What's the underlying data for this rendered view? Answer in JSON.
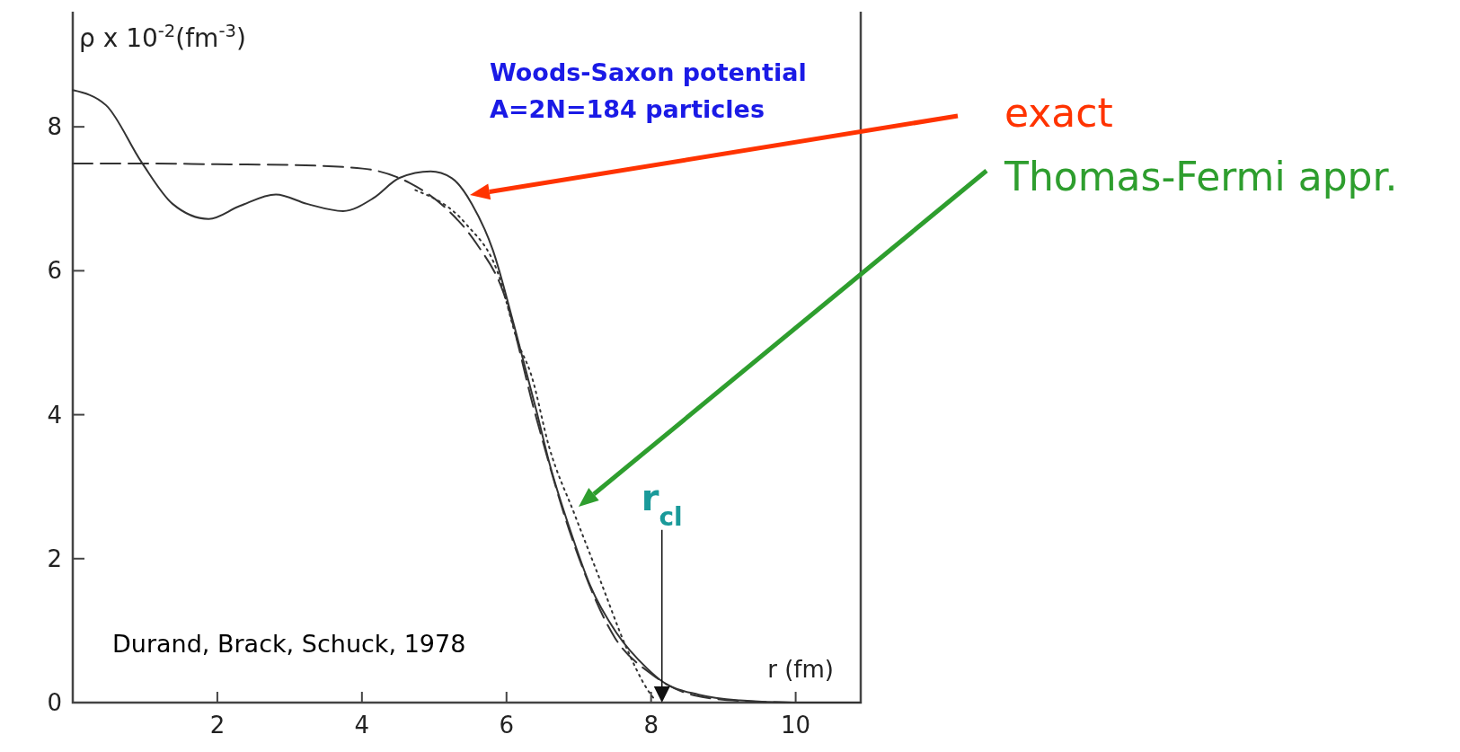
{
  "chart_data": {
    "type": "line",
    "ylabel": "ρ x 10$^{-2}$(fm$^{-3}$)",
    "xlabel": "r (fm)",
    "xlim": [
      0,
      10.9
    ],
    "ylim": [
      0,
      9.6
    ],
    "xticks": [
      2,
      4,
      6,
      8,
      10
    ],
    "yticks": [
      0,
      2,
      4,
      6,
      8
    ],
    "grid": false,
    "marker": "none",
    "series": [
      {
        "color": "#333333",
        "line_style": "solid",
        "x": [
          0,
          0.46,
          0.95,
          1.38,
          1.88,
          2.31,
          2.81,
          3.24,
          3.74,
          4.16,
          4.52,
          4.95,
          5.24,
          5.52,
          5.81,
          6.11,
          6.41,
          6.59,
          6.88,
          7.16,
          7.52,
          7.95,
          8.16,
          8.66,
          9.23,
          9.94,
          10.9
        ],
        "values": [
          8.51,
          8.3,
          7.51,
          6.93,
          6.72,
          6.9,
          7.06,
          6.93,
          6.83,
          7.01,
          7.29,
          7.38,
          7.29,
          6.93,
          6.29,
          5.22,
          4.07,
          3.34,
          2.4,
          1.62,
          0.97,
          0.47,
          0.29,
          0.11,
          0.03,
          0,
          0
        ]
      },
      {
        "color": "#333333",
        "line_style": "dashed",
        "x": [
          0,
          1,
          2,
          3,
          4.01,
          4.66,
          5.16,
          5.59,
          5.95,
          6.4,
          6.9,
          7.5,
          8.0,
          8.6,
          9.3,
          10
        ],
        "values": [
          7.49,
          7.49,
          7.48,
          7.47,
          7.42,
          7.22,
          6.87,
          6.37,
          5.72,
          4.0,
          2.3,
          0.9,
          0.4,
          0.1,
          0.02,
          0
        ]
      },
      {
        "color": "#333333",
        "line_style": "dotted",
        "x": [
          4.74,
          5.44,
          5.87,
          6.16,
          6.34,
          6.59,
          6.94,
          7.3,
          7.66,
          7.95,
          8.05
        ],
        "values": [
          7.12,
          6.65,
          6.0,
          5.0,
          4.56,
          3.55,
          2.62,
          1.69,
          0.76,
          0.18,
          0.04
        ]
      }
    ],
    "ref_lines": [
      {
        "axis": "x",
        "value": 8.15,
        "label": "r$_{cl}$",
        "color": "#111111"
      }
    ],
    "annotations": [
      "Woods-Saxon potential",
      "A=2N=184 particles",
      "exact",
      "Thomas-Fermi appr.",
      "Durand, Brack, Schuck, 1978"
    ]
  }
}
